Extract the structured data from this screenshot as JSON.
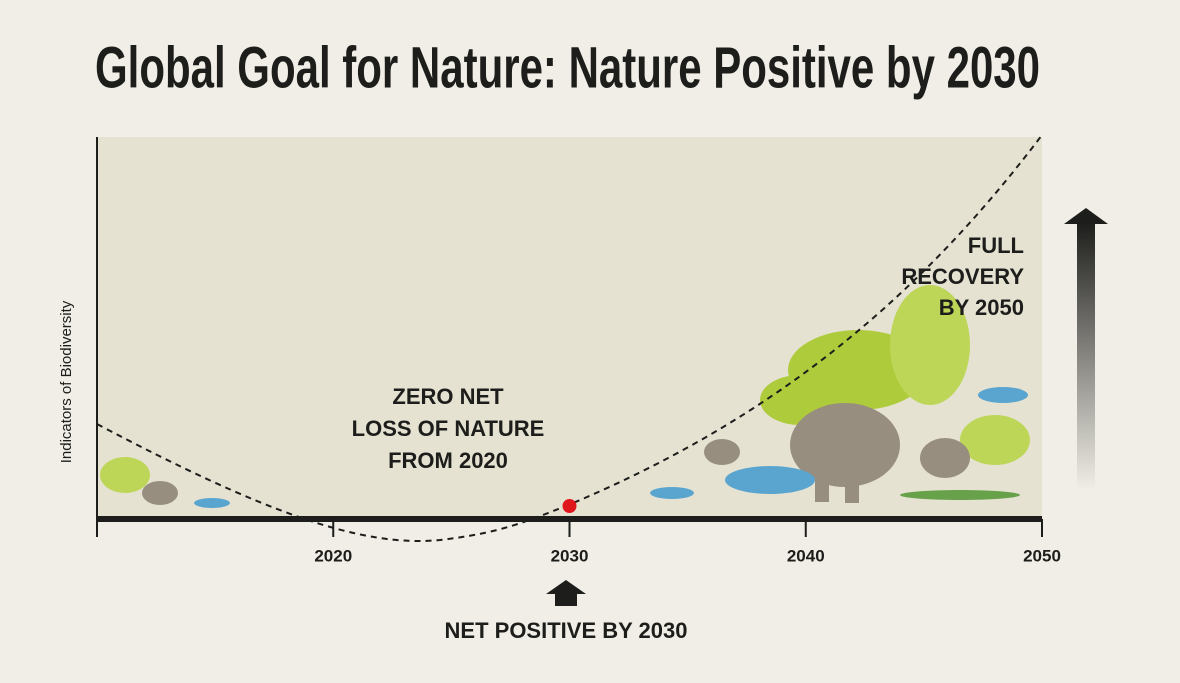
{
  "chart_data": {
    "type": "trajectory",
    "title": "Global Goal for Nature: Nature Positive by 2030",
    "y_label": "Indicators of Biodiversity",
    "xlim": [
      2010,
      2050
    ],
    "xticks": [
      2020,
      2030,
      2040,
      2050
    ],
    "point": {
      "x": 2030,
      "color": "#e0161d"
    },
    "annotations": {
      "zero_net": [
        "ZERO NET",
        "LOSS OF NATURE",
        "FROM 2020"
      ],
      "full_recovery": [
        "FULL",
        "RECOVERY",
        "BY 2050"
      ],
      "net_positive": "NET POSITIVE BY 2030"
    }
  }
}
